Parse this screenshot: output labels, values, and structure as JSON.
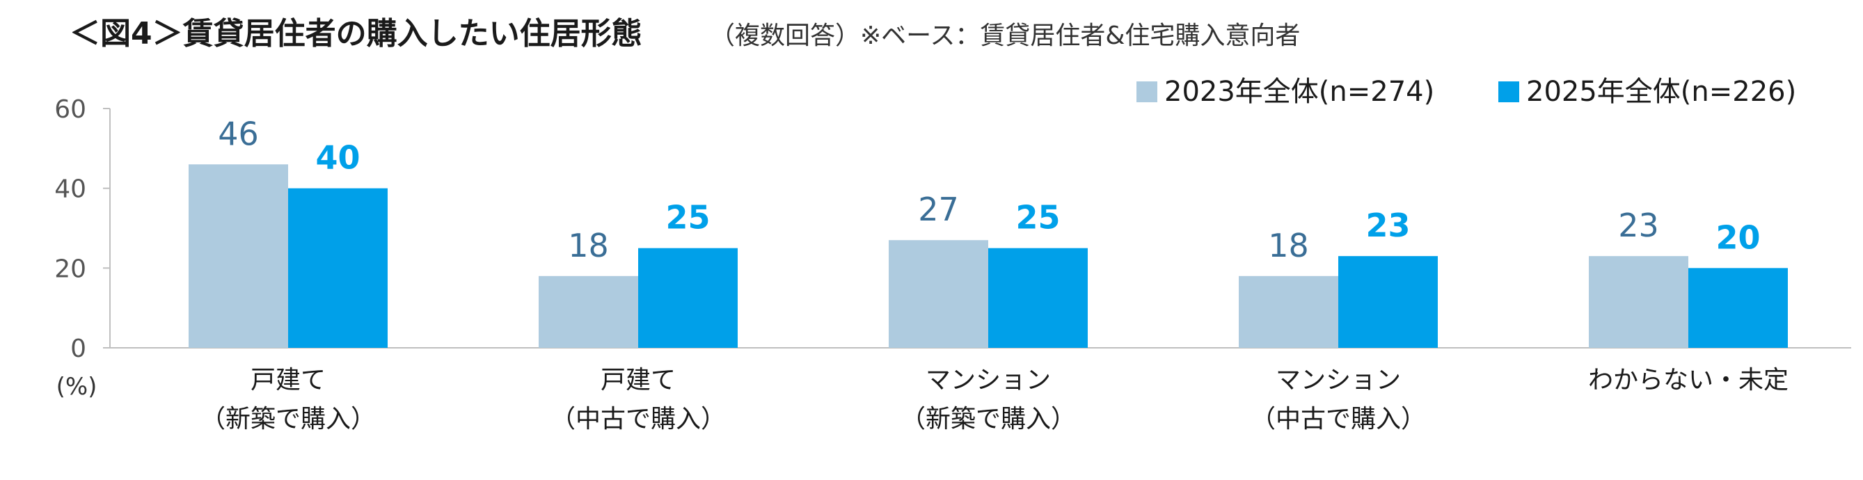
{
  "chart_data": {
    "type": "bar",
    "title": "＜図4＞賃貸居住者の購入したい住居形態",
    "subtitle": "（複数回答）※ベース：賃貸居住者&住宅購入意向者",
    "unit_label": "(%)",
    "categories": [
      [
        "戸建て",
        "（新築で購入）"
      ],
      [
        "戸建て",
        "（中古で購入）"
      ],
      [
        "マンション",
        "（新築で購入）"
      ],
      [
        "マンション",
        "（中古で購入）"
      ],
      [
        "わからない・未定"
      ]
    ],
    "series": [
      {
        "name": "2023年全体(n=274)",
        "values": [
          46,
          18,
          27,
          18,
          23
        ],
        "color": "#aecbdf"
      },
      {
        "name": "2025年全体(n=226)",
        "values": [
          40,
          25,
          25,
          23,
          20
        ],
        "color": "#00a0e9"
      }
    ],
    "ylim": [
      0,
      60
    ],
    "yticks": [
      0,
      20,
      40,
      60
    ],
    "grid": false,
    "legend_position": "top-right"
  }
}
